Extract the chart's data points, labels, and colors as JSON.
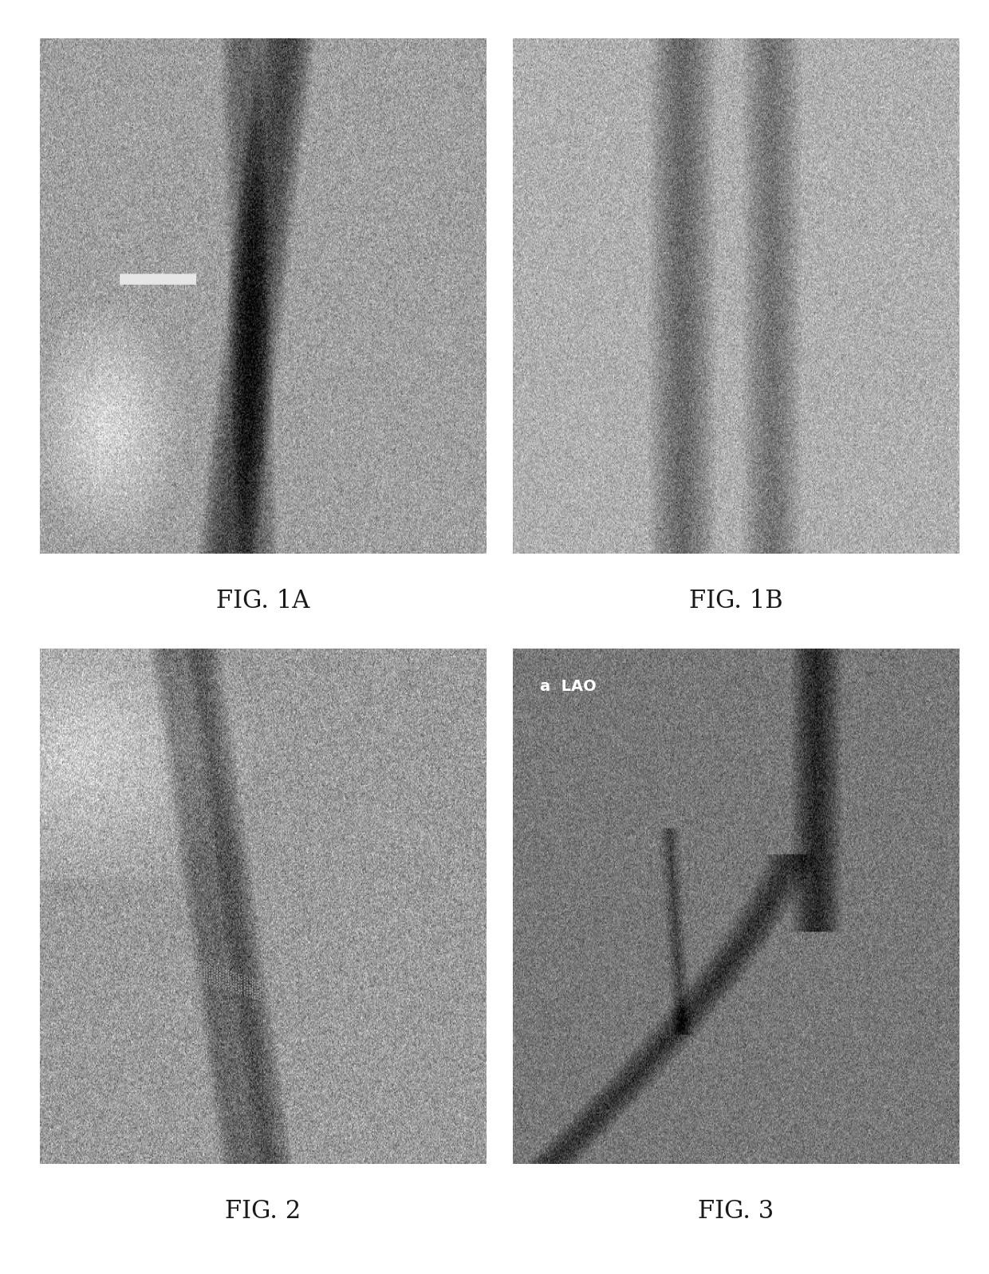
{
  "background_color": "#ffffff",
  "fig_width": 12.4,
  "fig_height": 15.97,
  "label_1a": "FIG. 1A",
  "label_1b": "FIG. 1B",
  "label_2": "FIG. 2",
  "label_3": "FIG. 3",
  "label_fontsize": 22,
  "label_color": "#1a1a1a",
  "annotation_lao": "a  LAO",
  "annotation_fontsize": 14
}
